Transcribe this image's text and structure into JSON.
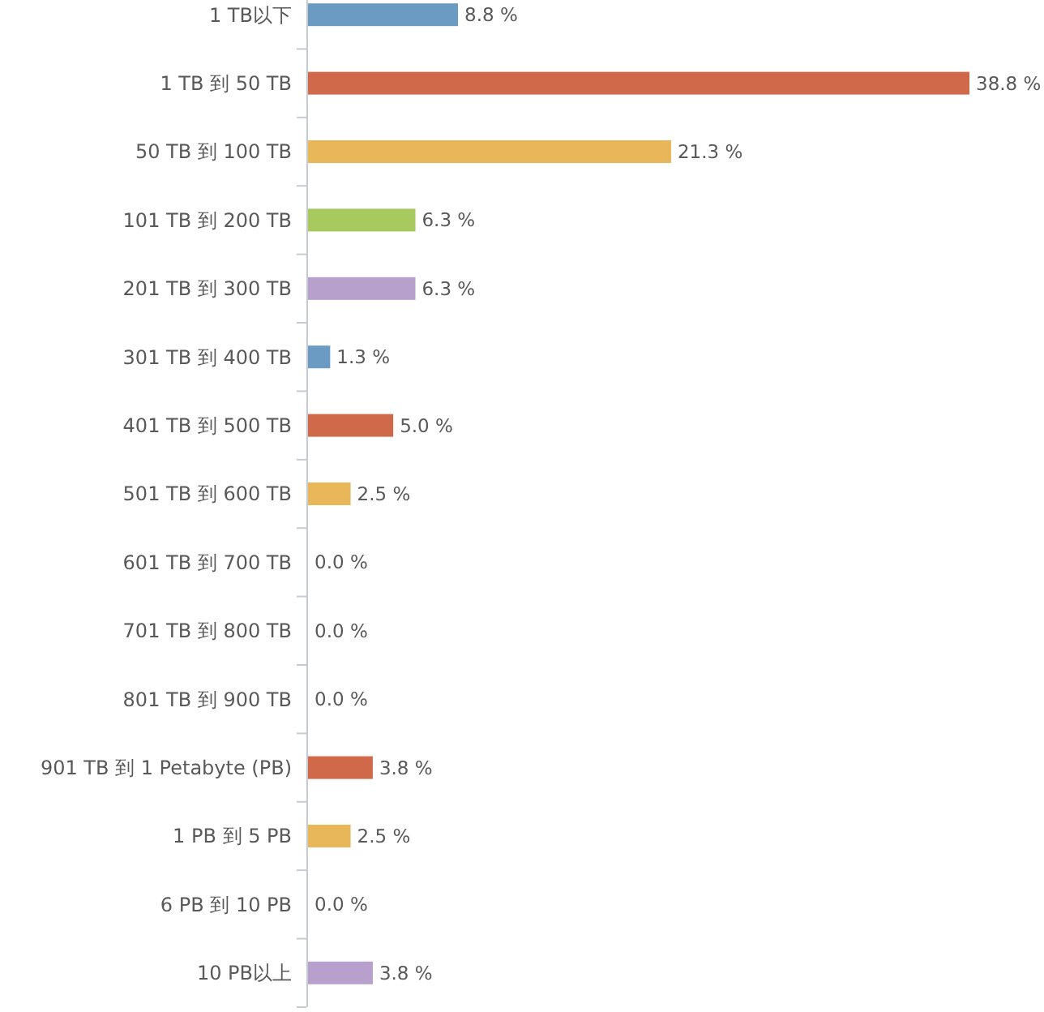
{
  "chart_data": {
    "type": "bar",
    "orientation": "horizontal",
    "categories": [
      "1 TB以下",
      "1 TB 到 50 TB",
      "50 TB 到 100 TB",
      "101 TB 到 200 TB",
      "201 TB 到 300 TB",
      "301 TB 到 400 TB",
      "401 TB 到 500 TB",
      "501 TB 到 600 TB",
      "601 TB 到 700 TB",
      "701 TB 到 800 TB",
      "801 TB 到 900 TB",
      "901 TB 到 1 Petabyte (PB)",
      "1 PB 到 5 PB",
      "6 PB 到 10 PB",
      "10 PB以上"
    ],
    "values": [
      8.8,
      38.8,
      21.3,
      6.3,
      6.3,
      1.3,
      5.0,
      2.5,
      0.0,
      0.0,
      0.0,
      3.8,
      2.5,
      0.0,
      3.8
    ],
    "colors": [
      "#6b9bc3",
      "#d0694a",
      "#e8b75a",
      "#a8c95d",
      "#b8a0cc",
      "#6b9bc3",
      "#d0694a",
      "#e8b75a",
      null,
      null,
      null,
      "#d0694a",
      "#e8b75a",
      null,
      "#b8a0cc"
    ],
    "value_labels": [
      "8.8 %",
      "38.8 %",
      "21.3 %",
      "6.3 %",
      "6.3 %",
      "1.3 %",
      "5.0 %",
      "2.5 %",
      "0.0 %",
      "0.0 %",
      "0.0 %",
      "3.8 %",
      "2.5 %",
      "0.0 %",
      "3.8 %"
    ]
  }
}
